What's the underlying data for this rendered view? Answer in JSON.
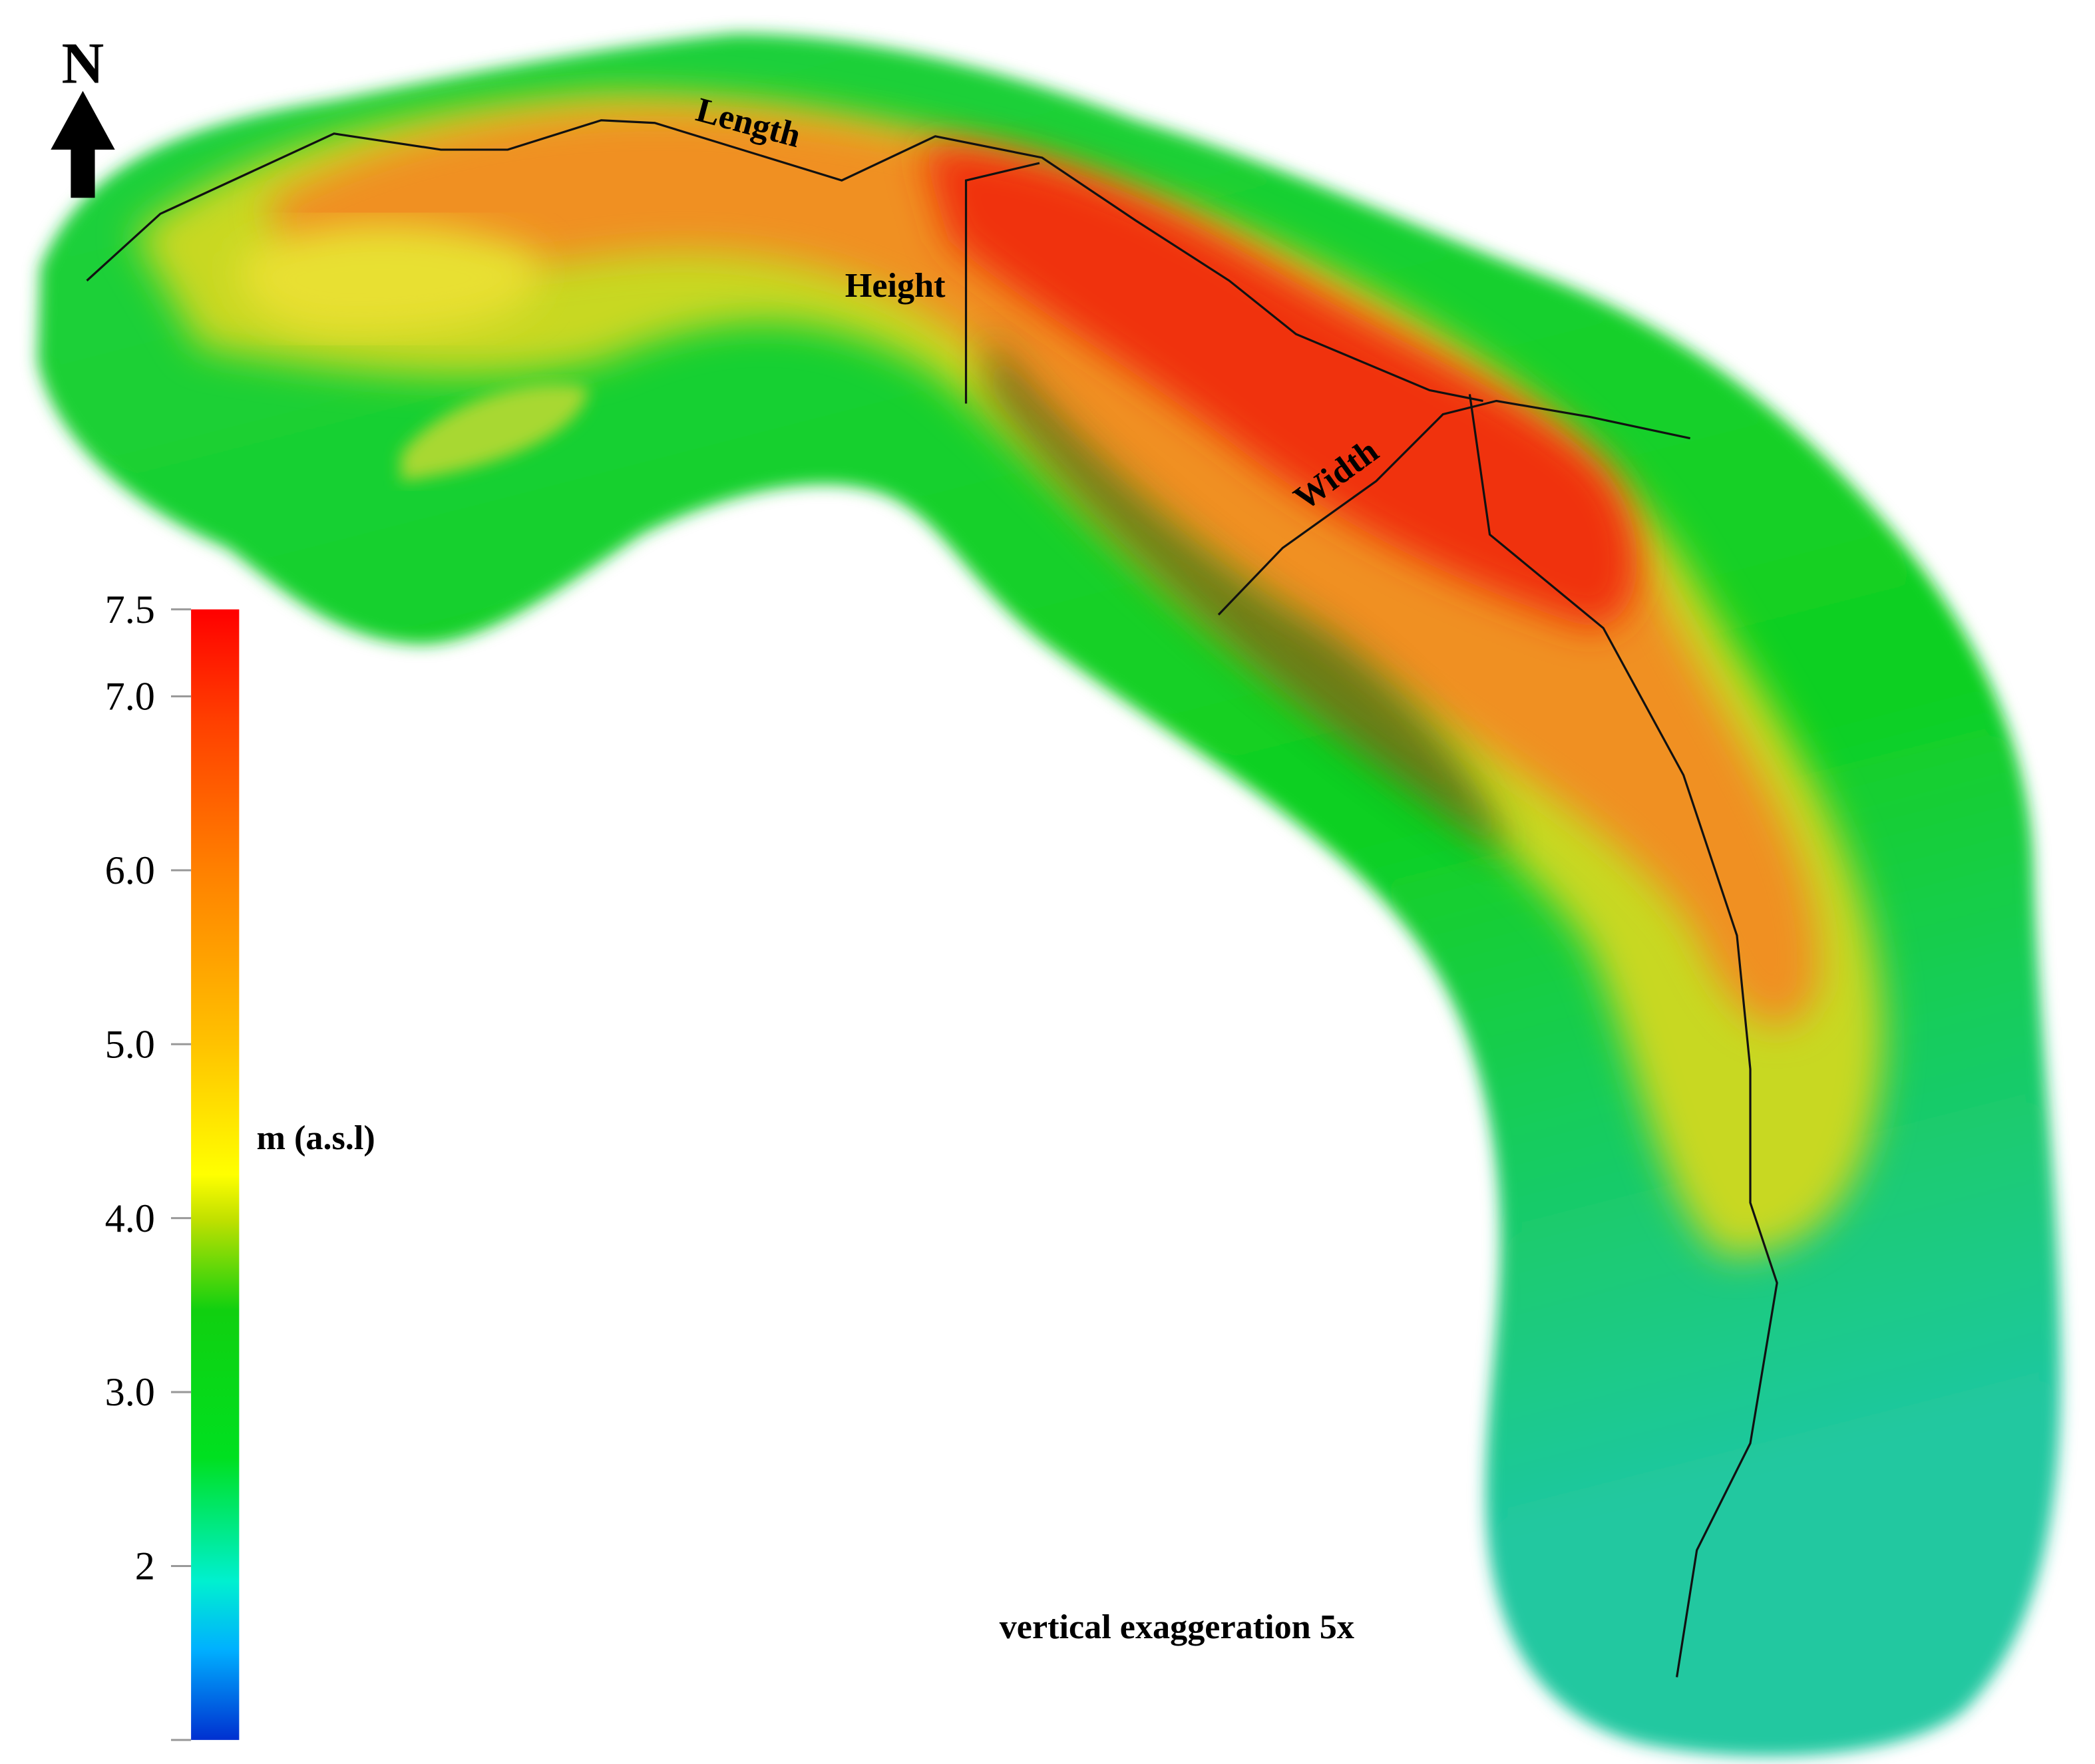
{
  "map": {
    "north_label": "N",
    "annotations": {
      "length": "Length",
      "height": "Height",
      "width": "Width"
    },
    "note": "vertical exaggeration 5x",
    "colorbar": {
      "label": "m (a.s.l)",
      "lim": [
        1.0,
        7.5
      ],
      "ticks": [
        2,
        {
          "value": 3,
          "label": "3.0"
        },
        {
          "value": 4,
          "label": "4.0"
        },
        {
          "value": 5,
          "label": "5.0"
        },
        {
          "value": 6,
          "label": "6.0"
        },
        {
          "value": 7,
          "label": "7.0"
        },
        7.5
      ]
    }
  }
}
